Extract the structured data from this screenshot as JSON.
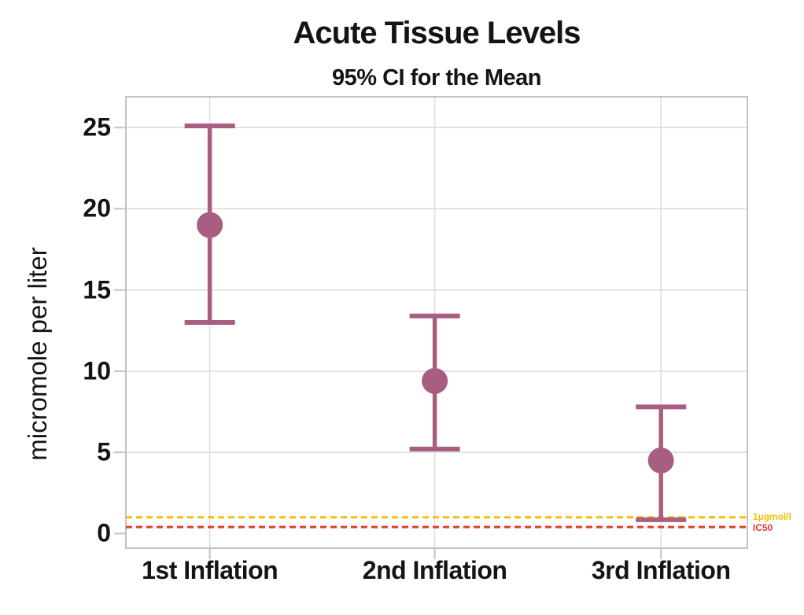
{
  "title": "Acute Tissue Levels",
  "subtitle": "95% CI for the Mean",
  "chart_data": {
    "type": "scatter",
    "subtype": "interval-plot-mean-95ci",
    "title": "Acute Tissue Levels",
    "subtitle": "95% CI for the Mean",
    "categories": [
      "1st Inflation",
      "2nd Inflation",
      "3rd Inflation"
    ],
    "series": [
      {
        "name": "Mean",
        "means": [
          19.0,
          9.4,
          4.5
        ],
        "ci_lower": [
          13.0,
          5.2,
          0.85
        ],
        "ci_upper": [
          25.1,
          13.4,
          7.8
        ]
      }
    ],
    "xlabel": "",
    "ylabel": "micromole per liter",
    "yticks": [
      0,
      5,
      10,
      15,
      20,
      25
    ],
    "ylim": [
      -0.9,
      26.9
    ],
    "grid": true,
    "legend_position": "none",
    "reference_lines": [
      {
        "label": "1µgmol/l",
        "value": 1.0,
        "color": "#f5be00",
        "style": "dashed"
      },
      {
        "label": "IC50",
        "value": 0.4,
        "color": "#e63a2a",
        "style": "dashed"
      }
    ],
    "colors": {
      "point": "#a75e80",
      "grid": "#dcdcdc",
      "frame": "#aeaeae",
      "tick": "#c4c4c4",
      "text": "#141414"
    }
  }
}
